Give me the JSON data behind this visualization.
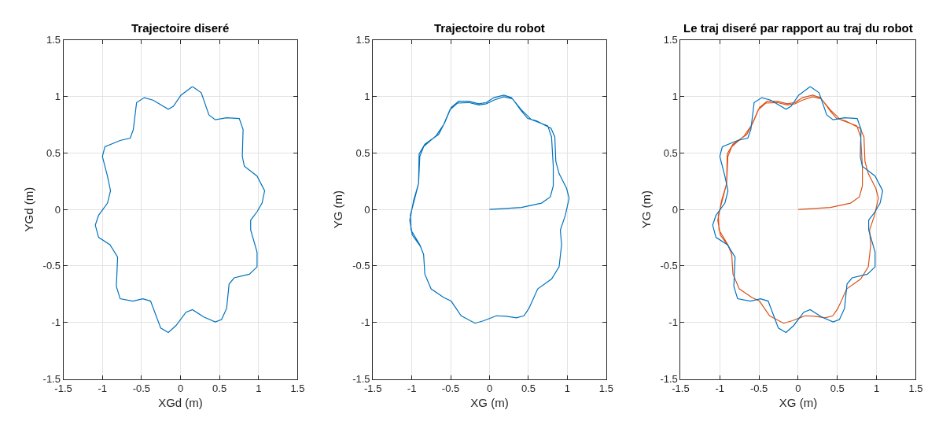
{
  "chart_data": [
    {
      "type": "line",
      "title": "Trajectoire diseré",
      "xlabel": "XGd (m)",
      "ylabel": "YGd (m)",
      "xlim": [
        -1.5,
        1.5
      ],
      "ylim": [
        -1.5,
        1.5
      ],
      "xticks": [
        -1.5,
        -1,
        -0.5,
        0,
        0.5,
        1,
        1.5
      ],
      "yticks": [
        -1.5,
        -1,
        -0.5,
        0,
        0.5,
        1,
        1.5
      ],
      "grid": true,
      "marker": "none",
      "line_style": "solid",
      "series": [
        {
          "color": "#0072bd",
          "x": [
            0.153,
            0.266,
            0.364,
            0.445,
            0.591,
            0.753,
            0.802,
            0.792,
            0.818,
            0.981,
            1.078,
            1.045,
            0.981,
            0.899,
            0.899,
            0.981,
            0.981,
            0.883,
            0.688,
            0.623,
            0.591,
            0.526,
            0.445,
            0.299,
            0.153,
            0.071,
            -0.058,
            -0.156,
            -0.253,
            -0.383,
            -0.481,
            -0.61,
            -0.773,
            -0.821,
            -0.805,
            -0.903,
            -1.049,
            -1.091,
            -1.049,
            -0.935,
            -0.896,
            -0.935,
            -1.0,
            -0.968,
            -0.773,
            -0.643,
            -0.604,
            -0.562,
            -0.464,
            -0.351,
            -0.156,
            -0.091,
            0.006,
            0.15
          ],
          "values": [
            1.087,
            1.033,
            0.837,
            0.794,
            0.811,
            0.805,
            0.707,
            0.469,
            0.382,
            0.295,
            0.165,
            0.056,
            -0.02,
            -0.095,
            -0.182,
            -0.377,
            -0.508,
            -0.573,
            -0.605,
            -0.659,
            -0.876,
            -0.974,
            -0.996,
            -0.952,
            -0.887,
            -0.909,
            -1.028,
            -1.089,
            -1.05,
            -0.811,
            -0.79,
            -0.811,
            -0.79,
            -0.681,
            -0.421,
            -0.312,
            -0.247,
            -0.139,
            -0.052,
            0.056,
            0.165,
            0.295,
            0.469,
            0.555,
            0.61,
            0.631,
            0.707,
            0.946,
            0.989,
            0.967,
            0.887,
            0.913,
            1.011,
            1.085
          ]
        }
      ]
    },
    {
      "type": "line",
      "title": "Trajectoire du robot",
      "xlabel": "XG (m)",
      "ylabel": "YG (m)",
      "xlim": [
        -1.5,
        1.5
      ],
      "ylim": [
        -1.5,
        1.5
      ],
      "xticks": [
        -1.5,
        -1,
        -0.5,
        0,
        0.5,
        1,
        1.5
      ],
      "yticks": [
        -1.5,
        -1,
        -0.5,
        0,
        0.5,
        1,
        1.5
      ],
      "grid": true,
      "marker": "none",
      "line_style": "solid",
      "series": [
        {
          "color": "#0072bd",
          "x": [
            0,
            0.41,
            0.668,
            0.781,
            0.819,
            0.819,
            0.797,
            0.748,
            0.539,
            0.41,
            0.281,
            0.184,
            0.055,
            -0.042,
            -0.139,
            -0.268,
            -0.397,
            -0.494,
            -0.574,
            -0.655,
            -0.832,
            -0.906,
            -0.913,
            -0.961,
            -1.019,
            -1.01,
            -0.897,
            -0.848,
            -0.832,
            -0.752,
            -0.59,
            -0.494,
            -0.365,
            -0.187,
            -0.074,
            0.087,
            0.216,
            0.345,
            0.442,
            0.506,
            0.619,
            0.797,
            0.894,
            0.926,
            0.91,
            0.974,
            1.023,
            0.99,
            0.894,
            0.852,
            0.839,
            0.79,
            0.603,
            0.49,
            0.41,
            0.297,
            0.184,
            0.055,
            -0.042,
            -0.139,
            -0.268,
            -0.413,
            -0.51,
            -0.59,
            -0.687,
            -0.848,
            -0.897,
            -0.913,
            -0.977,
            -1.026,
            -0.994,
            -0.881
          ],
          "values": [
            0,
            0.017,
            0.056,
            0.111,
            0.208,
            0.382,
            0.642,
            0.74,
            0.794,
            0.881,
            0.989,
            1.011,
            0.989,
            0.946,
            0.935,
            0.957,
            0.957,
            0.902,
            0.772,
            0.664,
            0.577,
            0.49,
            0.23,
            0.1,
            -0.052,
            -0.182,
            -0.312,
            -0.399,
            -0.573,
            -0.703,
            -0.779,
            -0.811,
            -0.941,
            -1.007,
            -0.985,
            -0.941,
            -0.946,
            -0.959,
            -0.941,
            -0.876,
            -0.703,
            -0.616,
            -0.508,
            -0.312,
            -0.182,
            -0.052,
            0.1,
            0.187,
            0.317,
            0.425,
            0.642,
            0.718,
            0.783,
            0.805,
            0.87,
            0.978,
            0.998,
            0.967,
            0.935,
            0.924,
            0.946,
            0.941,
            0.881,
            0.751,
            0.653,
            0.555,
            0.469,
            0.23,
            0.078,
            -0.095,
            -0.226,
            -0.334
          ]
        }
      ]
    },
    {
      "type": "line",
      "title": "Le traj diseré par rapport au traj du robot",
      "xlabel": "XG (m)",
      "ylabel": "YG (m)",
      "xlim": [
        -1.5,
        1.5
      ],
      "ylim": [
        -1.5,
        1.5
      ],
      "xticks": [
        -1.5,
        -1,
        -0.5,
        0,
        0.5,
        1,
        1.5
      ],
      "yticks": [
        -1.5,
        -1,
        -0.5,
        0,
        0.5,
        1,
        1.5
      ],
      "grid": true,
      "marker": "none",
      "line_style": "solid",
      "series": [
        {
          "color": "#0072bd",
          "x": [
            0.153,
            0.266,
            0.364,
            0.445,
            0.591,
            0.753,
            0.802,
            0.792,
            0.818,
            0.981,
            1.078,
            1.045,
            0.981,
            0.899,
            0.899,
            0.981,
            0.981,
            0.883,
            0.688,
            0.623,
            0.591,
            0.526,
            0.445,
            0.299,
            0.153,
            0.071,
            -0.058,
            -0.156,
            -0.253,
            -0.383,
            -0.481,
            -0.61,
            -0.773,
            -0.821,
            -0.805,
            -0.903,
            -1.049,
            -1.091,
            -1.049,
            -0.935,
            -0.896,
            -0.935,
            -1.0,
            -0.968,
            -0.773,
            -0.643,
            -0.604,
            -0.562,
            -0.464,
            -0.351,
            -0.156,
            -0.091,
            0.006,
            0.15
          ],
          "values": [
            1.087,
            1.033,
            0.837,
            0.794,
            0.811,
            0.805,
            0.707,
            0.469,
            0.382,
            0.295,
            0.165,
            0.056,
            -0.02,
            -0.095,
            -0.182,
            -0.377,
            -0.508,
            -0.573,
            -0.605,
            -0.659,
            -0.876,
            -0.974,
            -0.996,
            -0.952,
            -0.887,
            -0.909,
            -1.028,
            -1.089,
            -1.05,
            -0.811,
            -0.79,
            -0.811,
            -0.79,
            -0.681,
            -0.421,
            -0.312,
            -0.247,
            -0.139,
            -0.052,
            0.056,
            0.165,
            0.295,
            0.469,
            0.555,
            0.61,
            0.631,
            0.707,
            0.946,
            0.989,
            0.967,
            0.887,
            0.913,
            1.011,
            1.085
          ]
        },
        {
          "color": "#d95319",
          "x": [
            0,
            0.41,
            0.668,
            0.781,
            0.819,
            0.819,
            0.797,
            0.748,
            0.539,
            0.41,
            0.281,
            0.184,
            0.055,
            -0.042,
            -0.139,
            -0.268,
            -0.397,
            -0.494,
            -0.574,
            -0.655,
            -0.832,
            -0.906,
            -0.913,
            -0.961,
            -1.019,
            -1.01,
            -0.897,
            -0.848,
            -0.832,
            -0.752,
            -0.59,
            -0.494,
            -0.365,
            -0.187,
            -0.074,
            0.087,
            0.216,
            0.345,
            0.442,
            0.506,
            0.619,
            0.797,
            0.894,
            0.926,
            0.91,
            0.974,
            1.023,
            0.99,
            0.894,
            0.852,
            0.839,
            0.79,
            0.603,
            0.49,
            0.41,
            0.297,
            0.184,
            0.055,
            -0.042,
            -0.139,
            -0.268,
            -0.413,
            -0.51,
            -0.59,
            -0.687,
            -0.848,
            -0.897,
            -0.913,
            -0.977,
            -1.026,
            -0.994,
            -0.881
          ],
          "values": [
            0,
            0.017,
            0.056,
            0.111,
            0.208,
            0.382,
            0.642,
            0.74,
            0.794,
            0.881,
            0.989,
            1.011,
            0.989,
            0.946,
            0.935,
            0.957,
            0.957,
            0.902,
            0.772,
            0.664,
            0.577,
            0.49,
            0.23,
            0.1,
            -0.052,
            -0.182,
            -0.312,
            -0.399,
            -0.573,
            -0.703,
            -0.779,
            -0.811,
            -0.941,
            -1.007,
            -0.985,
            -0.941,
            -0.946,
            -0.959,
            -0.941,
            -0.876,
            -0.703,
            -0.616,
            -0.508,
            -0.312,
            -0.182,
            -0.052,
            0.1,
            0.187,
            0.317,
            0.425,
            0.642,
            0.718,
            0.783,
            0.805,
            0.87,
            0.978,
            0.998,
            0.967,
            0.935,
            0.924,
            0.946,
            0.941,
            0.881,
            0.751,
            0.653,
            0.555,
            0.469,
            0.23,
            0.078,
            -0.095,
            -0.226,
            -0.334
          ]
        }
      ]
    }
  ]
}
